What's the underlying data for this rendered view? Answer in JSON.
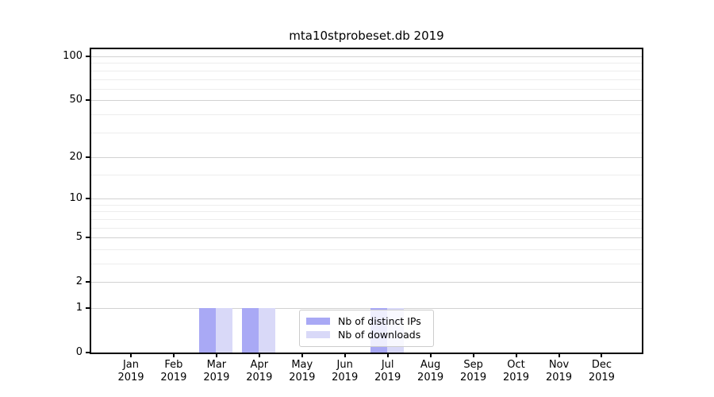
{
  "chart_data": {
    "type": "bar",
    "title": "mta10stprobeset.db 2019",
    "year": "2019",
    "categories": [
      "Jan",
      "Feb",
      "Mar",
      "Apr",
      "May",
      "Jun",
      "Jul",
      "Aug",
      "Sep",
      "Oct",
      "Nov",
      "Dec"
    ],
    "series": [
      {
        "name": "Nb of distinct IPs",
        "color": "#a9a9f5",
        "values": [
          0,
          0,
          1,
          1,
          0,
          0,
          1,
          0,
          0,
          0,
          0,
          0
        ]
      },
      {
        "name": "Nb of downloads",
        "color": "#d9d9f8",
        "values": [
          0,
          0,
          1,
          1,
          0,
          0,
          1,
          0,
          0,
          0,
          0,
          0
        ]
      }
    ],
    "y_axis": {
      "scale": "log10(v+1)",
      "ticks": [
        0,
        1,
        2,
        5,
        10,
        20,
        50,
        100
      ],
      "minor_gridlines": [
        3,
        4,
        6,
        7,
        8,
        9,
        15,
        30,
        40,
        60,
        70,
        80,
        90
      ],
      "max": 114
    },
    "xlabel": "",
    "ylabel": "",
    "grid": "horizontal",
    "legend_position": "bottom-center"
  },
  "colors": {
    "background": "#ffffff",
    "axis": "#000000",
    "major_gridline": "#d2d2d2",
    "minor_gridline": "#ededed",
    "legend_border": "#cccccc"
  }
}
